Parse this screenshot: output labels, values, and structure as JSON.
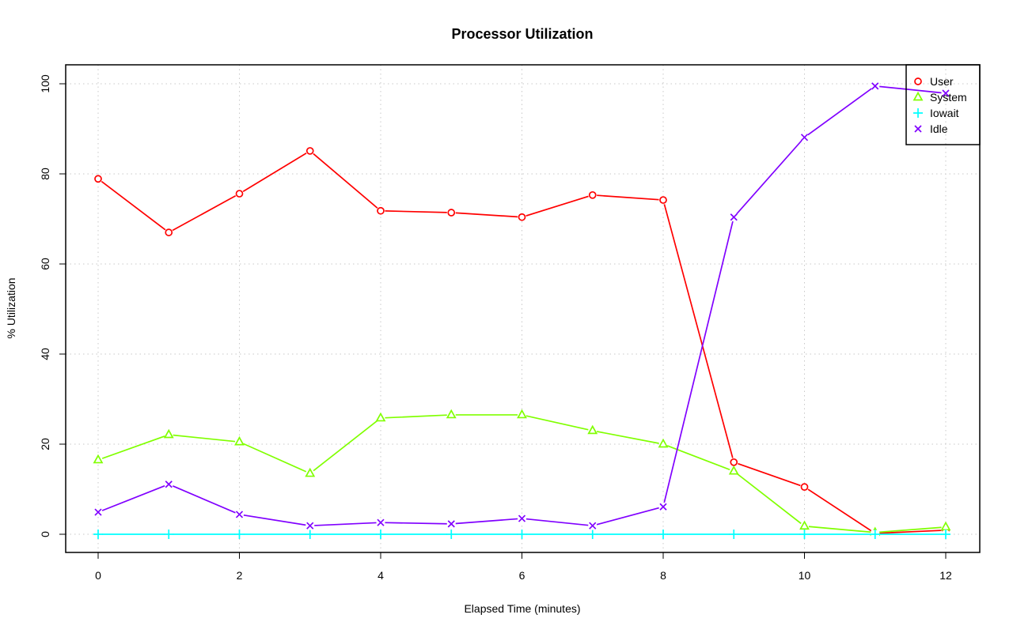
{
  "chart_data": {
    "type": "line",
    "title": "Processor Utilization",
    "xlabel": "Elapsed Time (minutes)",
    "ylabel": "% Utilization",
    "xlim": [
      0,
      12
    ],
    "ylim": [
      0,
      100
    ],
    "xticks": [
      0,
      2,
      4,
      6,
      8,
      10,
      12
    ],
    "yticks": [
      0,
      20,
      40,
      60,
      80,
      100
    ],
    "grid": true,
    "legend_position": "top-right",
    "x": [
      0,
      1,
      2,
      3,
      4,
      5,
      6,
      7,
      8,
      9,
      10,
      11,
      12
    ],
    "series": [
      {
        "name": "User",
        "color": "#ff0000",
        "marker": "circle",
        "values": [
          78.9,
          67.0,
          75.6,
          85.1,
          71.8,
          71.4,
          70.4,
          75.3,
          74.2,
          16.0,
          10.5,
          0.2,
          0.9
        ]
      },
      {
        "name": "System",
        "color": "#80ff00",
        "marker": "triangle",
        "values": [
          16.5,
          22.1,
          20.5,
          13.5,
          25.8,
          26.5,
          26.5,
          23.0,
          20.0,
          14.0,
          1.8,
          0.4,
          1.6
        ]
      },
      {
        "name": "Iowait",
        "color": "#00ffff",
        "marker": "plus",
        "values": [
          0,
          0,
          0,
          0,
          0,
          0,
          0,
          0,
          0,
          0,
          0,
          0,
          0
        ]
      },
      {
        "name": "Idle",
        "color": "#8000ff",
        "marker": "cross",
        "values": [
          4.9,
          11.1,
          4.4,
          1.9,
          2.6,
          2.3,
          3.5,
          1.9,
          6.1,
          70.4,
          88.1,
          99.5,
          97.9
        ]
      }
    ]
  }
}
